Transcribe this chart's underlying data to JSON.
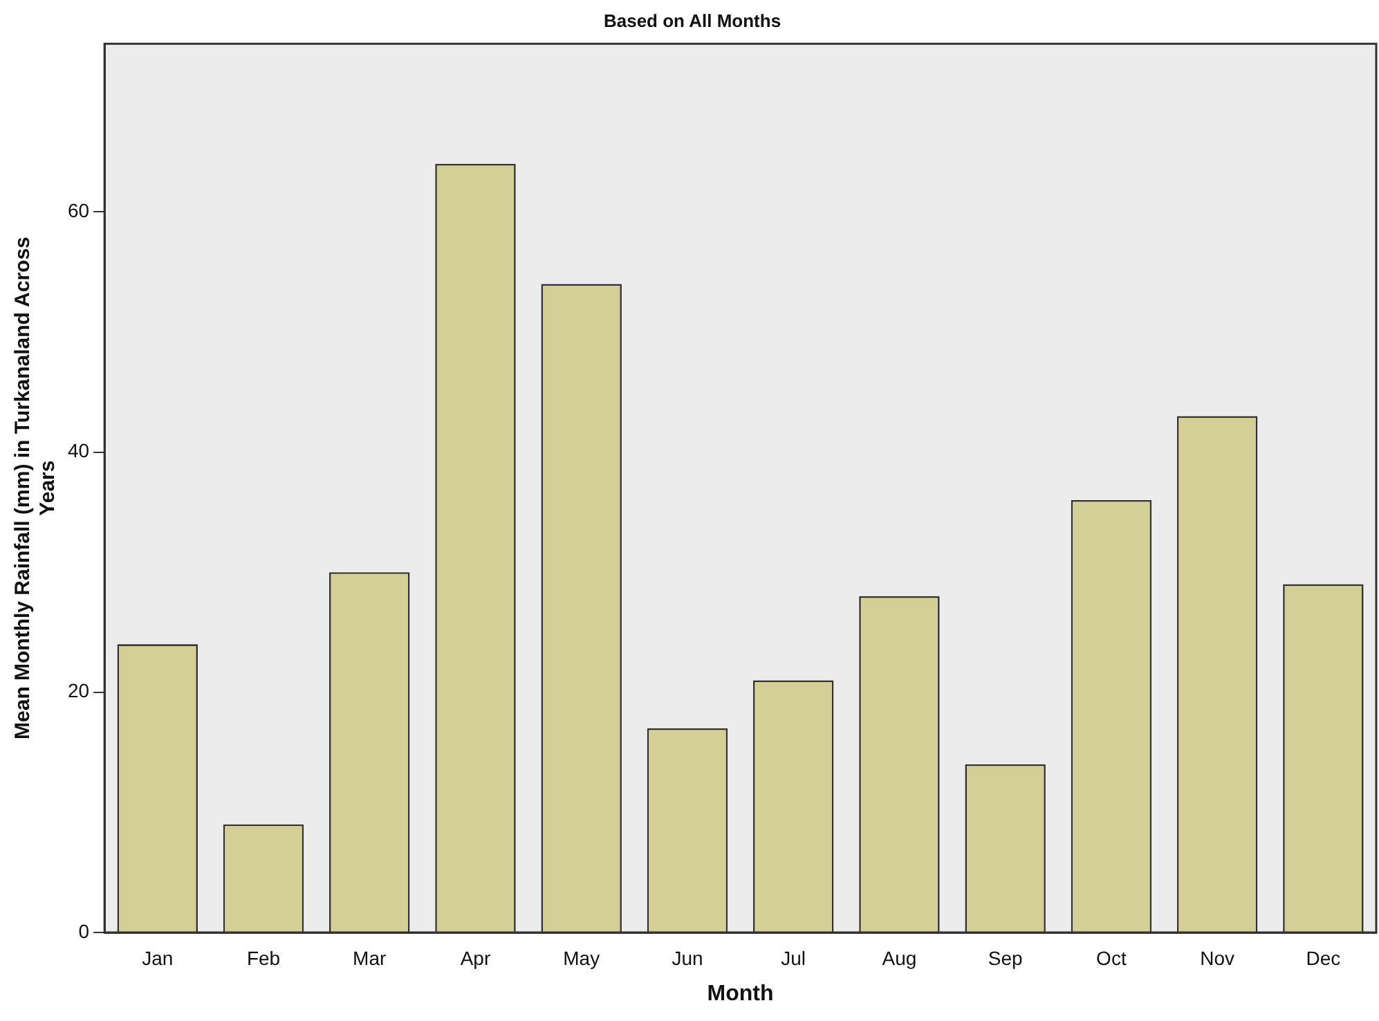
{
  "chart_data": {
    "type": "bar",
    "title": "Based on All Months",
    "xlabel": "Month",
    "ylabel": "Mean Monthly Rainfall (mm) in Turkanaland Across Years",
    "categories": [
      "Jan",
      "Feb",
      "Mar",
      "Apr",
      "May",
      "Jun",
      "Jul",
      "Aug",
      "Sep",
      "Oct",
      "Nov",
      "Dec"
    ],
    "values": [
      24,
      9,
      30,
      64,
      54,
      17,
      21,
      28,
      14,
      36,
      43,
      29
    ],
    "color": "#d4cf96",
    "ylim": [
      0,
      74
    ],
    "yticks": [
      0,
      20,
      40,
      60
    ],
    "grid": false,
    "legend": false
  }
}
